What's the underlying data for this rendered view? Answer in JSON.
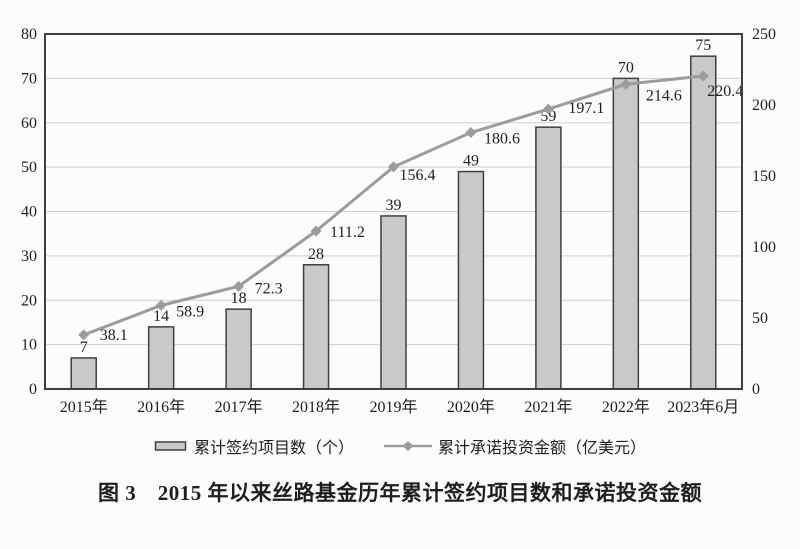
{
  "page": {
    "background": "#fcfcfb"
  },
  "colors": {
    "bar_fill": "#c9c9c9",
    "bar_stroke": "#3f3f3f",
    "line": "#9b9b9b",
    "grid": "#cfcfcf",
    "plot_border": "#3e3e3e",
    "text": "#1e1e1e"
  },
  "figure_caption": "图 3　2015 年以来丝路基金历年累计签约项目数和承诺投资金额",
  "chart_data": {
    "type": "combo",
    "categories": [
      "2015年",
      "2016年",
      "2017年",
      "2018年",
      "2019年",
      "2020年",
      "2021年",
      "2022年",
      "2023年6月"
    ],
    "series": [
      {
        "name": "累计签约项目数（个）",
        "kind": "bar",
        "axis": "left",
        "values": [
          7,
          14,
          18,
          28,
          39,
          49,
          59,
          70,
          75
        ]
      },
      {
        "name": "累计承诺投资金额（亿美元）",
        "kind": "line",
        "axis": "right",
        "values": [
          38.1,
          58.9,
          72.3,
          111.2,
          156.4,
          180.6,
          197.1,
          214.6,
          220.4
        ]
      }
    ],
    "left_axis": {
      "min": 0,
      "max": 80,
      "ticks": [
        0,
        10,
        20,
        30,
        40,
        50,
        60,
        70,
        80
      ]
    },
    "right_axis": {
      "min": 0,
      "max": 250,
      "ticks": [
        0,
        50,
        100,
        150,
        200,
        250
      ]
    },
    "grid": "horizontal",
    "legend_position": "bottom"
  }
}
